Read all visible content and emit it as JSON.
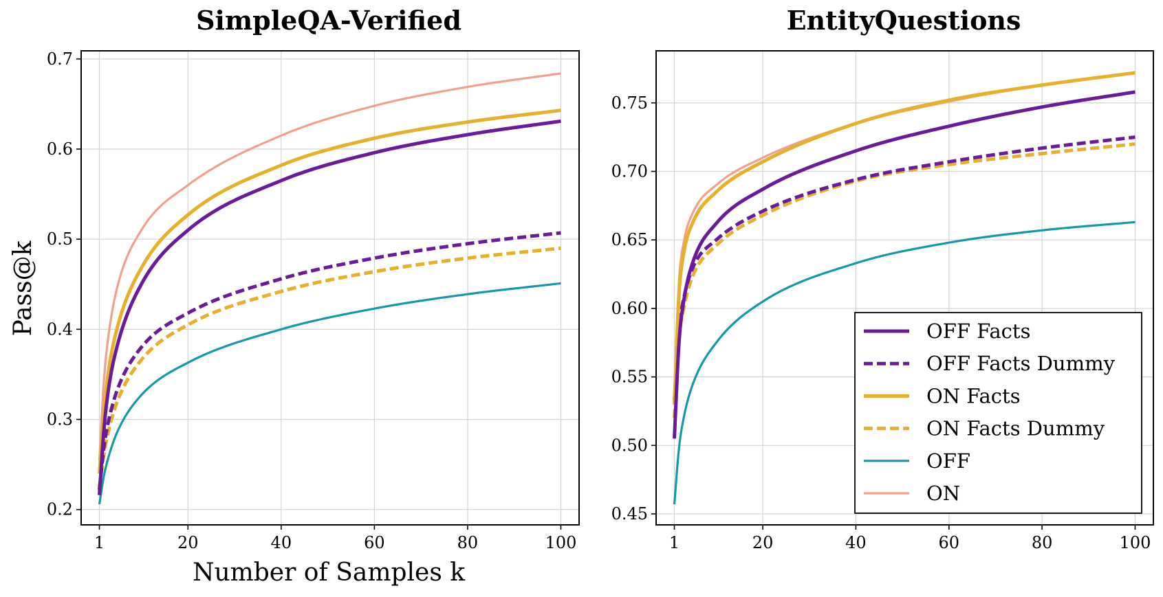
{
  "figure": {
    "panels": [
      {
        "title": "SimpleQA-Verified",
        "xlabel": "Number of Samples k",
        "ylabel": "Pass@k",
        "xticks": [
          1,
          20,
          40,
          60,
          80,
          100
        ],
        "yticks": [
          "0.2",
          "0.3",
          "0.4",
          "0.5",
          "0.6",
          "0.7"
        ]
      },
      {
        "title": "EntityQuestions",
        "xlabel": "",
        "ylabel": "",
        "xticks": [
          1,
          20,
          40,
          60,
          80,
          100
        ],
        "yticks": [
          "0.45",
          "0.50",
          "0.55",
          "0.60",
          "0.65",
          "0.70",
          "0.75"
        ]
      }
    ],
    "legend": {
      "placement": "lower-right (right panel)",
      "entries": [
        "OFF Facts",
        "OFF Facts Dummy",
        "ON Facts",
        "ON Facts Dummy",
        "OFF",
        "ON"
      ]
    }
  },
  "chart_data": [
    {
      "type": "line",
      "title": "SimpleQA-Verified",
      "xlabel": "Number of Samples k",
      "ylabel": "Pass@k",
      "xlim": [
        1,
        100
      ],
      "ylim": [
        0.183,
        0.709
      ],
      "grid": true,
      "x": [
        1,
        2,
        3,
        5,
        10,
        20,
        40,
        60,
        80,
        100
      ],
      "series": [
        {
          "name": "OFF Facts",
          "color": "#6a1b9a",
          "style": "solid",
          "width": "thick",
          "values": [
            0.216,
            0.29,
            0.335,
            0.385,
            0.45,
            0.51,
            0.565,
            0.596,
            0.616,
            0.631
          ]
        },
        {
          "name": "OFF Facts Dummy",
          "color": "#6a1b9a",
          "style": "dashed",
          "width": "thick",
          "values": [
            0.222,
            0.27,
            0.299,
            0.335,
            0.38,
            0.418,
            0.456,
            0.479,
            0.495,
            0.507
          ]
        },
        {
          "name": "ON Facts",
          "color": "#e5b02a",
          "style": "solid",
          "width": "thick",
          "values": [
            0.24,
            0.31,
            0.355,
            0.405,
            0.468,
            0.527,
            0.582,
            0.612,
            0.63,
            0.643
          ]
        },
        {
          "name": "ON Facts Dummy",
          "color": "#e5b02a",
          "style": "dashed",
          "width": "thick",
          "values": [
            0.225,
            0.262,
            0.288,
            0.322,
            0.366,
            0.405,
            0.442,
            0.464,
            0.479,
            0.49
          ]
        },
        {
          "name": "OFF",
          "color": "#1699a6",
          "style": "solid",
          "width": "medium",
          "values": [
            0.206,
            0.238,
            0.259,
            0.288,
            0.327,
            0.363,
            0.4,
            0.423,
            0.439,
            0.451
          ]
        },
        {
          "name": "ON",
          "color": "#f2a08e",
          "style": "solid",
          "width": "medium",
          "values": [
            0.255,
            0.345,
            0.395,
            0.45,
            0.51,
            0.56,
            0.615,
            0.648,
            0.669,
            0.684
          ]
        }
      ]
    },
    {
      "type": "line",
      "title": "EntityQuestions",
      "xlabel": "",
      "ylabel": "",
      "xlim": [
        1,
        100
      ],
      "ylim": [
        0.442,
        0.788
      ],
      "grid": true,
      "x": [
        1,
        2,
        3,
        5,
        10,
        20,
        40,
        60,
        80,
        100
      ],
      "series": [
        {
          "name": "OFF Facts",
          "color": "#6a1b9a",
          "style": "solid",
          "width": "thick",
          "values": [
            0.505,
            0.575,
            0.605,
            0.634,
            0.662,
            0.687,
            0.715,
            0.733,
            0.747,
            0.758
          ]
        },
        {
          "name": "OFF Facts Dummy",
          "color": "#6a1b9a",
          "style": "dashed",
          "width": "thick",
          "values": [
            0.533,
            0.585,
            0.607,
            0.63,
            0.65,
            0.671,
            0.694,
            0.707,
            0.717,
            0.725
          ]
        },
        {
          "name": "ON Facts",
          "color": "#e5b02a",
          "style": "solid",
          "width": "thick",
          "values": [
            0.53,
            0.61,
            0.64,
            0.663,
            0.685,
            0.707,
            0.735,
            0.752,
            0.763,
            0.772
          ]
        },
        {
          "name": "ON Facts Dummy",
          "color": "#e5b02a",
          "style": "dashed",
          "width": "thick",
          "values": [
            0.52,
            0.578,
            0.6,
            0.624,
            0.646,
            0.668,
            0.693,
            0.705,
            0.713,
            0.72
          ]
        },
        {
          "name": "OFF",
          "color": "#1699a6",
          "style": "solid",
          "width": "medium",
          "values": [
            0.457,
            0.498,
            0.52,
            0.545,
            0.575,
            0.605,
            0.633,
            0.648,
            0.657,
            0.663
          ]
        },
        {
          "name": "ON",
          "color": "#f2a08e",
          "style": "solid",
          "width": "medium",
          "values": [
            0.54,
            0.62,
            0.648,
            0.67,
            0.69,
            0.71,
            0.735,
            0.751,
            0.763,
            0.772
          ]
        }
      ]
    }
  ]
}
